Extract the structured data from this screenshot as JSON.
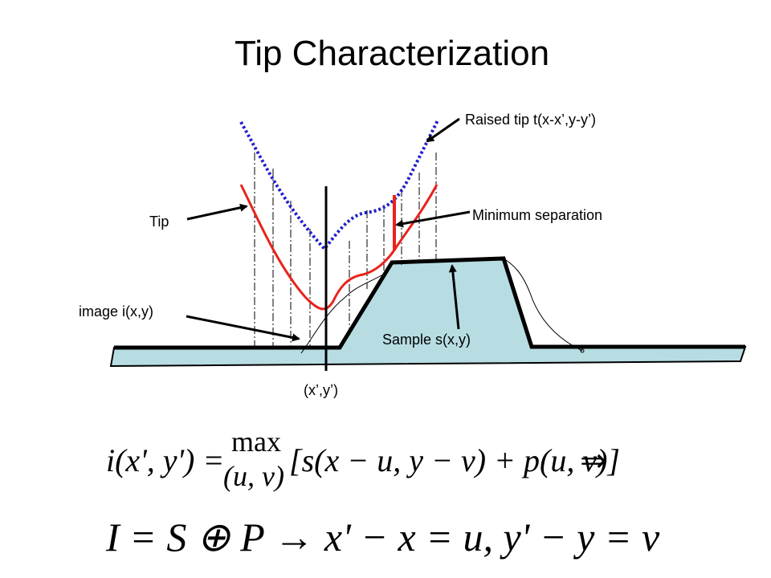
{
  "slide": {
    "title": "Tip Characterization"
  },
  "labels": {
    "raised_tip": "Raised tip t(x-x’,y-y’)",
    "tip": "Tip",
    "minimum_separation": "Minimum separation",
    "image": "image i(x,y)",
    "sample": "Sample s(x,y)",
    "point": "(x’,y’)"
  },
  "equation1": {
    "lhs": "i(x', y') =",
    "max_op": "max",
    "max_sub": "(u, v)",
    "rhs": "[s(x − u, y − v) + p(u, v)]",
    "implies": "⇒"
  },
  "equation2": {
    "text": "I = S ⊕ P → x' − x = u, y' − y = v"
  },
  "colors": {
    "sample_fill": "#b7dde3",
    "tip_line": "#e8231b",
    "raised_tip": "#1f1fcc",
    "outline": "#000000"
  }
}
